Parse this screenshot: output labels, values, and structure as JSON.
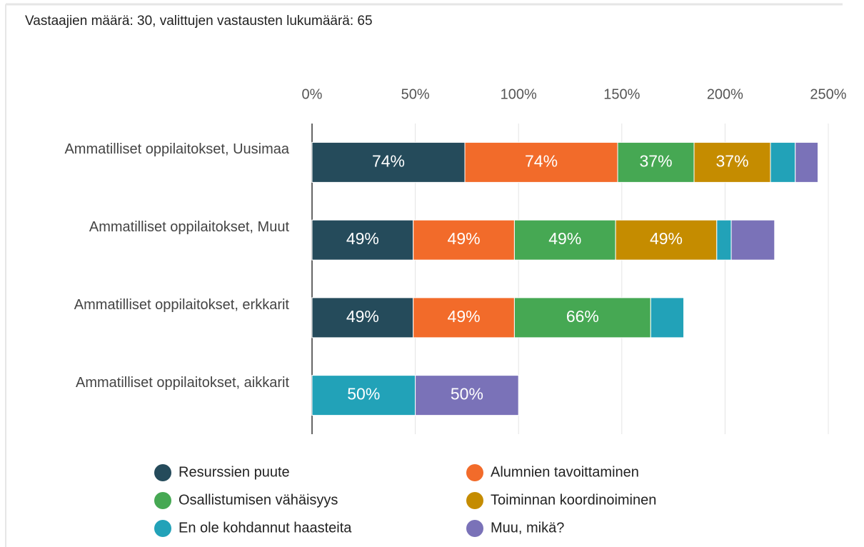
{
  "chart_data": {
    "type": "stacked_barh",
    "subtitle": "Vastaajien määrä: 30, valittujen vastausten lukumäärä: 65",
    "categories": [
      "Ammatilliset oppilaitokset, Uusimaa",
      "Ammatilliset oppilaitokset, Muut",
      "Ammatilliset oppilaitokset, erkkarit",
      "Ammatilliset oppilaitokset, aikkarit"
    ],
    "series": [
      {
        "name": "Resurssien puute",
        "color": "#254b5b",
        "values": [
          74,
          49,
          49,
          0
        ],
        "value_labels": [
          "74%",
          "49%",
          "49%",
          null
        ]
      },
      {
        "name": "Alumnien tavoittaminen",
        "color": "#f26b2a",
        "values": [
          74,
          49,
          49,
          0
        ],
        "value_labels": [
          "74%",
          "49%",
          "49%",
          null
        ]
      },
      {
        "name": "Osallistumisen vähäisyys",
        "color": "#46a853",
        "values": [
          37,
          49,
          66,
          0
        ],
        "value_labels": [
          "37%",
          "49%",
          "66%",
          null
        ]
      },
      {
        "name": "Toiminnan koordinoiminen",
        "color": "#c58c00",
        "values": [
          37,
          49,
          0,
          0
        ],
        "value_labels": [
          "37%",
          "49%",
          null,
          null
        ]
      },
      {
        "name": "En ole kohdannut haasteita",
        "color": "#22a2b8",
        "values": [
          12,
          7,
          16,
          50
        ],
        "value_labels": [
          null,
          null,
          null,
          "50%"
        ]
      },
      {
        "name": "Muu, mikä?",
        "color": "#7a72b8",
        "values": [
          11,
          21,
          0,
          50
        ],
        "value_labels": [
          null,
          null,
          null,
          "50%"
        ]
      }
    ],
    "xlim": [
      0,
      250
    ],
    "xticks": [
      {
        "value": 0,
        "label": "0%"
      },
      {
        "value": 50,
        "label": "50%"
      },
      {
        "value": 100,
        "label": "100%"
      },
      {
        "value": 150,
        "label": "150%"
      },
      {
        "value": 200,
        "label": "200%"
      },
      {
        "value": 250,
        "label": "250%"
      }
    ],
    "grid": true
  }
}
